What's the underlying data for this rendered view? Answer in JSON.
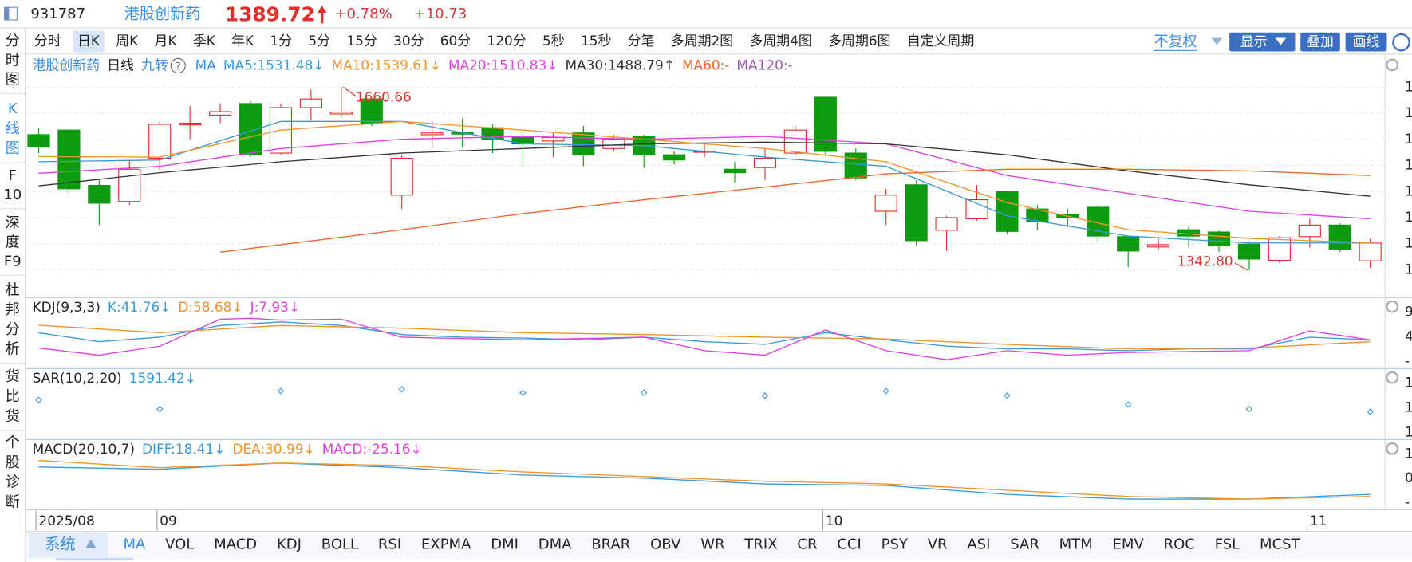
{
  "header": {
    "code": "931787",
    "name": "港股创新药",
    "price": "1389.72",
    "change_pct": "+0.78%",
    "change": "+10.73"
  },
  "side_tabs": [
    "分时图",
    "K线图",
    "F10",
    "深度F9",
    "杜邦分析",
    "货比货",
    "个股诊断"
  ],
  "periods": [
    "分时",
    "日K",
    "周K",
    "月K",
    "季K",
    "年K",
    "1分",
    "5分",
    "15分",
    "30分",
    "60分",
    "120分",
    "5秒",
    "15秒",
    "分笔",
    "多周期2图",
    "多周期4图",
    "多周期6图",
    "自定义周期"
  ],
  "right_buttons": [
    "不复权",
    "显示",
    "叠加",
    "画线"
  ],
  "system_tab": "系统",
  "indicators": [
    "MA",
    "VOL",
    "MACD",
    "KDJ",
    "BOLL",
    "RSI",
    "EXPMA",
    "DMI",
    "DMA",
    "BRAR",
    "OBV",
    "WR",
    "TRIX",
    "CR",
    "CCI",
    "PSY",
    "VR",
    "ASI",
    "SAR",
    "MTM",
    "EMV",
    "ROC",
    "FSL",
    "MCST"
  ],
  "chart_data": [
    {
      "type": "candlestick",
      "legend_texts": [
        "港股创新药",
        "日线",
        "九转",
        "MA"
      ],
      "legend_extra": [
        "MA120:-"
      ],
      "high_label": "1660.66",
      "low_label": "1342.80",
      "ylim": [
        1320,
        1668
      ],
      "axis_labels": [
        "1",
        "1",
        "1",
        "1",
        "1",
        "1",
        "1",
        "1"
      ],
      "up_color": "#e0302e",
      "down_color": "#0f9b0f",
      "categories": [
        "2025/08",
        null,
        null,
        null,
        "09",
        null,
        null,
        null,
        null,
        null,
        null,
        null,
        null,
        null,
        null,
        null,
        null,
        null,
        null,
        null,
        null,
        null,
        null,
        null,
        null,
        null,
        "10",
        null,
        null,
        null,
        null,
        null,
        null,
        null,
        null,
        null,
        null,
        null,
        null,
        null,
        null,
        null,
        "11",
        null,
        null
      ],
      "open": [
        1578,
        1586,
        1490,
        1462,
        1537,
        1595,
        1612,
        1632,
        1546,
        1625,
        1614,
        1640,
        1473,
        1578,
        1582,
        1590,
        1573,
        1567,
        1581,
        1554,
        1575,
        1543,
        1548,
        1518,
        1521,
        1546,
        1643,
        1546,
        1445,
        1491,
        1412,
        1432,
        1479,
        1449,
        1440,
        1452,
        1401,
        1383,
        1413,
        1409,
        1388,
        1360,
        1401,
        1421,
        1359
      ],
      "close": [
        1557,
        1484,
        1459,
        1518,
        1596,
        1598,
        1618,
        1543,
        1625,
        1640,
        1617,
        1598,
        1537,
        1581,
        1579,
        1570,
        1562,
        1573,
        1543,
        1570,
        1543,
        1534,
        1549,
        1512,
        1537,
        1586,
        1549,
        1503,
        1473,
        1394,
        1434,
        1465,
        1410,
        1427,
        1434,
        1402,
        1376,
        1387,
        1402,
        1385,
        1362,
        1399,
        1421,
        1379,
        1389.72
      ],
      "high": [
        1589,
        1587,
        1499,
        1534,
        1601,
        1628,
        1632,
        1636,
        1632,
        1656,
        1660.66,
        1643,
        1543,
        1601,
        1606,
        1596,
        1578,
        1581,
        1593,
        1578,
        1578,
        1549,
        1562,
        1531,
        1554,
        1593,
        1643,
        1554,
        1484,
        1499,
        1437,
        1491,
        1479,
        1456,
        1449,
        1456,
        1402,
        1398,
        1418,
        1413,
        1393,
        1402,
        1432,
        1424,
        1398
      ],
      "low": [
        1546,
        1476,
        1421,
        1456,
        1515,
        1570,
        1598,
        1539,
        1543,
        1604,
        1609,
        1593,
        1449,
        1554,
        1557,
        1546,
        1523,
        1539,
        1523,
        1549,
        1520,
        1526,
        1539,
        1495,
        1499,
        1543,
        1543,
        1499,
        1421,
        1385,
        1377,
        1429,
        1405,
        1413,
        1418,
        1393,
        1348,
        1377,
        1382,
        1374,
        1342.8,
        1355,
        1382,
        1374,
        1346
      ],
      "series": [
        {
          "name": "MA5:1531.48↓",
          "color": "#3a9ad9",
          "x": [
            0,
            4,
            8,
            12,
            16,
            20,
            24,
            28,
            32,
            36,
            40,
            44
          ],
          "values": [
            1531,
            1534,
            1601,
            1601,
            1562,
            1559,
            1539,
            1523,
            1437,
            1402,
            1390,
            1390
          ]
        },
        {
          "name": "MA10:1539.61↓",
          "color": "#f0932b",
          "x": [
            0,
            4,
            8,
            12,
            16,
            20,
            24,
            28,
            32,
            36,
            40,
            44
          ],
          "values": [
            1540,
            1539,
            1586,
            1601,
            1586,
            1570,
            1554,
            1531,
            1460,
            1413,
            1398,
            1390
          ]
        },
        {
          "name": "MA20:1510.83↓",
          "color": "#e040e0",
          "x": [
            0,
            4,
            8,
            12,
            16,
            20,
            24,
            28,
            32,
            36,
            40,
            44
          ],
          "values": [
            1511,
            1523,
            1554,
            1570,
            1575,
            1570,
            1575,
            1562,
            1507,
            1476,
            1445,
            1432
          ]
        },
        {
          "name": "MA30:1488.79↑",
          "color": "#333333",
          "x": [
            0,
            4,
            8,
            12,
            16,
            20,
            24,
            28,
            32,
            36,
            40,
            44
          ],
          "values": [
            1489,
            1512,
            1531,
            1546,
            1554,
            1562,
            1565,
            1562,
            1543,
            1515,
            1491,
            1471
          ]
        },
        {
          "name": "MA60:-",
          "color": "#f0652b",
          "x": [
            6,
            12,
            16,
            20,
            24,
            27,
            28,
            32,
            36,
            40,
            44
          ],
          "values": [
            1374,
            1413,
            1441,
            1465,
            1487,
            1504,
            1510,
            1518,
            1518,
            1515,
            1507
          ]
        }
      ]
    },
    {
      "type": "line",
      "title": "KDJ(9,3,3)",
      "ylim": [
        -38,
        116
      ],
      "axis_labels": [
        "9",
        "4",
        "-"
      ],
      "series": [
        {
          "name": "K:41.76↓",
          "color": "#3a9ad9",
          "x": [
            0,
            2,
            4,
            6,
            8,
            10,
            12,
            14,
            16,
            18,
            20,
            22,
            24,
            26,
            28,
            30,
            32,
            34,
            36,
            38,
            40,
            42,
            44
          ],
          "values": [
            41.76,
            22,
            32,
            58,
            66,
            58,
            38,
            32,
            30,
            26,
            32,
            22,
            16,
            42,
            26,
            12,
            6,
            6,
            2,
            6,
            6,
            32,
            26
          ]
        },
        {
          "name": "D:58.68↓",
          "color": "#f0932b",
          "x": [
            0,
            4,
            8,
            12,
            16,
            20,
            24,
            28,
            32,
            36,
            40,
            44
          ],
          "values": [
            58.68,
            42,
            58,
            52,
            42,
            38,
            32,
            28,
            16,
            6,
            8,
            22
          ]
        },
        {
          "name": "J:7.93↓",
          "color": "#e040e0",
          "x": [
            0,
            2,
            4,
            6,
            7,
            8,
            10,
            12,
            16,
            20,
            22,
            24,
            26,
            28,
            30,
            32,
            34,
            36,
            40,
            42,
            44
          ],
          "values": [
            7.93,
            -8,
            12,
            72,
            74,
            70,
            72,
            32,
            26,
            32,
            2,
            -8,
            48,
            2,
            -18,
            2,
            -8,
            -2,
            2,
            46,
            26
          ]
        }
      ]
    },
    {
      "type": "scatter",
      "title": "SAR(10,2,20)",
      "ylim": [
        1200,
        1890
      ],
      "axis_labels": [
        "1",
        "1",
        "1"
      ],
      "series": [
        {
          "name": "1591.42↓",
          "color": "#3a9ad9",
          "x": [
            0,
            4,
            8,
            12,
            16,
            20,
            24,
            28,
            32,
            36,
            40,
            44
          ],
          "values": [
            1591.42,
            1500,
            1682,
            1700,
            1664,
            1664,
            1636,
            1682,
            1636,
            1546,
            1500,
            1473
          ]
        }
      ]
    },
    {
      "type": "line",
      "title": "MACD(20,10,7)",
      "ylim": [
        -60,
        69
      ],
      "axis_labels": [
        "1",
        "0",
        "-"
      ],
      "legend_extra": [
        "MACD:-25.16↓"
      ],
      "series": [
        {
          "name": "DIFF:18.41↓",
          "color": "#3a9ad9",
          "x": [
            0,
            4,
            8,
            12,
            16,
            20,
            24,
            28,
            32,
            36,
            40,
            44
          ],
          "values": [
            18.41,
            14,
            26,
            17,
            3,
            -3,
            -14,
            -17,
            -34,
            -43,
            -43,
            -34
          ]
        },
        {
          "name": "DEA:30.99↓",
          "color": "#f0932b",
          "x": [
            0,
            4,
            8,
            12,
            16,
            20,
            24,
            28,
            32,
            36,
            40,
            44
          ],
          "values": [
            30.99,
            17,
            26,
            21,
            9,
            0,
            -9,
            -14,
            -26,
            -38,
            -43,
            -38
          ]
        }
      ]
    }
  ]
}
